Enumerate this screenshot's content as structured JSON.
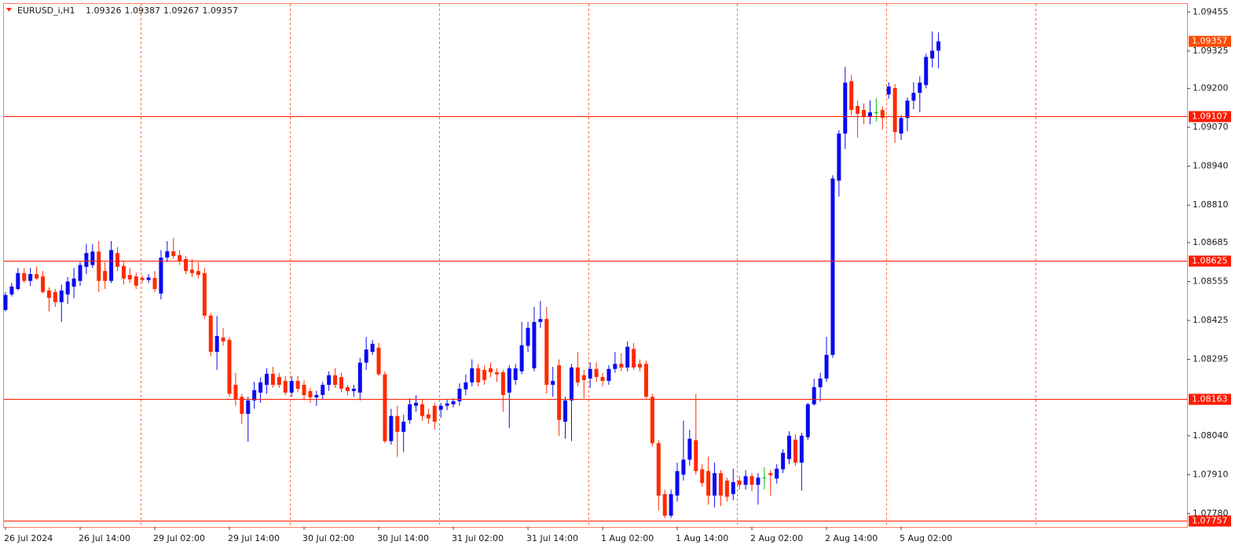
{
  "chart_data": {
    "type": "candlestick",
    "symbol": "EURUSD_i,H1",
    "header_ohlc": [
      1.09326,
      1.09387,
      1.09267,
      1.09357
    ],
    "up_color": "#0a0af0",
    "down_color": "#ff2a00",
    "doji_color": "#00c000",
    "grid": true,
    "ylim": [
      1.07738,
      1.09482
    ],
    "yticks": [
      {
        "value": 1.09455,
        "label": "1.09455"
      },
      {
        "value": 1.09325,
        "label": "1.09325"
      },
      {
        "value": 1.092,
        "label": "1.09200"
      },
      {
        "value": 1.0907,
        "label": "1.09070"
      },
      {
        "value": 1.0894,
        "label": "1.08940"
      },
      {
        "value": 1.0881,
        "label": "1.08810"
      },
      {
        "value": 1.08685,
        "label": "1.08685"
      },
      {
        "value": 1.08555,
        "label": "1.08555"
      },
      {
        "value": 1.08425,
        "label": "1.08425"
      },
      {
        "value": 1.08295,
        "label": "1.08295"
      },
      {
        "value": 1.0804,
        "label": "1.08040"
      },
      {
        "value": 1.0791,
        "label": "1.07910"
      },
      {
        "value": 1.0778,
        "label": "1.07780"
      }
    ],
    "levels": [
      1.09107,
      1.08625,
      1.08163,
      1.07757
    ],
    "level_color": "#ff1a00",
    "last_price": 1.09357,
    "last_price_color": "#ff4a00",
    "categories": [
      "26 Jul 2024",
      null,
      null,
      null,
      null,
      null,
      null,
      null,
      null,
      null,
      null,
      null,
      "26 Jul 14:00",
      null,
      null,
      null,
      null,
      null,
      null,
      null,
      null,
      null,
      null,
      null,
      "29 Jul 02:00",
      null,
      null,
      null,
      null,
      null,
      null,
      null,
      null,
      null,
      null,
      null,
      "29 Jul 14:00",
      null,
      null,
      null,
      null,
      null,
      null,
      null,
      null,
      null,
      null,
      null,
      "30 Jul 02:00",
      null,
      null,
      null,
      null,
      null,
      null,
      null,
      null,
      null,
      null,
      null,
      "30 Jul 14:00",
      null,
      null,
      null,
      null,
      null,
      null,
      null,
      null,
      null,
      null,
      null,
      "31 Jul 02:00",
      null,
      null,
      null,
      null,
      null,
      null,
      null,
      null,
      null,
      null,
      null,
      "31 Jul 14:00",
      null,
      null,
      null,
      null,
      null,
      null,
      null,
      null,
      null,
      null,
      null,
      "1 Aug 02:00",
      null,
      null,
      null,
      null,
      null,
      null,
      null,
      null,
      null,
      null,
      null,
      "1 Aug 14:00",
      null,
      null,
      null,
      null,
      null,
      null,
      null,
      null,
      null,
      null,
      null,
      "2 Aug 02:00",
      null,
      null,
      null,
      null,
      null,
      null,
      null,
      null,
      null,
      null,
      null,
      "2 Aug 14:00",
      null,
      null,
      null,
      null,
      null,
      null,
      null,
      null,
      null,
      null,
      null,
      "5 Aug 02:00",
      null,
      null,
      null,
      null,
      null,
      null
    ],
    "ohlc": [
      [
        1.0846,
        1.0852,
        1.08455,
        1.0851
      ],
      [
        1.08512,
        1.0855,
        1.08505,
        1.08538
      ],
      [
        1.0853,
        1.086,
        1.08525,
        1.08583
      ],
      [
        1.08583,
        1.086,
        1.0855,
        1.08557
      ],
      [
        1.08557,
        1.086,
        1.0854,
        1.0858
      ],
      [
        1.0858,
        1.08605,
        1.0856,
        1.08565
      ],
      [
        1.08572,
        1.0859,
        1.08515,
        1.0852
      ],
      [
        1.08525,
        1.08535,
        1.08455,
        1.085
      ],
      [
        1.0852,
        1.0853,
        1.0847,
        1.08486
      ],
      [
        1.08486,
        1.08545,
        1.0842,
        1.08525
      ],
      [
        1.08512,
        1.0857,
        1.0848,
        1.08555
      ],
      [
        1.08538,
        1.086,
        1.085,
        1.08565
      ],
      [
        1.08557,
        1.0862,
        1.0854,
        1.0861
      ],
      [
        1.08604,
        1.0868,
        1.0858,
        1.0865
      ],
      [
        1.0861,
        1.0868,
        1.086,
        1.08655
      ],
      [
        1.08655,
        1.0869,
        1.0852,
        1.08557
      ],
      [
        1.0859,
        1.0862,
        1.0853,
        1.08557
      ],
      [
        1.08557,
        1.0869,
        1.0855,
        1.0866
      ],
      [
        1.0865,
        1.0867,
        1.0859,
        1.08604
      ],
      [
        1.08607,
        1.08625,
        1.08545,
        1.08565
      ],
      [
        1.08577,
        1.086,
        1.0855,
        1.08562
      ],
      [
        1.08572,
        1.08585,
        1.0853,
        1.08541
      ],
      [
        1.08567,
        1.08575,
        1.0855,
        1.0856
      ],
      [
        1.0856,
        1.0858,
        1.0855,
        1.08568
      ],
      [
        1.08567,
        1.0859,
        1.0852,
        1.0853
      ],
      [
        1.08515,
        1.0866,
        1.08495,
        1.08635
      ],
      [
        1.08635,
        1.0869,
        1.0862,
        1.08656
      ],
      [
        1.08656,
        1.087,
        1.0863,
        1.0864
      ],
      [
        1.08643,
        1.0866,
        1.0861,
        1.08622
      ],
      [
        1.0863,
        1.0864,
        1.0858,
        1.0859
      ],
      [
        1.08595,
        1.0863,
        1.0857,
        1.08583
      ],
      [
        1.0859,
        1.0862,
        1.08565,
        1.08577
      ],
      [
        1.08583,
        1.086,
        1.0843,
        1.08441
      ],
      [
        1.08441,
        1.0845,
        1.08305,
        1.0832
      ],
      [
        1.0832,
        1.0844,
        1.0826,
        1.08373
      ],
      [
        1.08368,
        1.084,
        1.0834,
        1.08355
      ],
      [
        1.0836,
        1.0837,
        1.0817,
        1.0818
      ],
      [
        1.0821,
        1.0825,
        1.0814,
        1.08163
      ],
      [
        1.0817,
        1.0818,
        1.0808,
        1.08113
      ],
      [
        1.08113,
        1.0817,
        1.0802,
        1.08158
      ],
      [
        1.08158,
        1.0822,
        1.0813,
        1.08192
      ],
      [
        1.08184,
        1.08235,
        1.0815,
        1.08218
      ],
      [
        1.0821,
        1.08265,
        1.0818,
        1.08247
      ],
      [
        1.08247,
        1.0827,
        1.082,
        1.0821
      ],
      [
        1.08236,
        1.0825,
        1.082,
        1.0821
      ],
      [
        1.08223,
        1.0824,
        1.08175,
        1.08184
      ],
      [
        1.08184,
        1.0824,
        1.0817,
        1.08223
      ],
      [
        1.08223,
        1.0824,
        1.08185,
        1.08197
      ],
      [
        1.0821,
        1.08225,
        1.0816,
        1.08176
      ],
      [
        1.08189,
        1.082,
        1.0815,
        1.08168
      ],
      [
        1.08168,
        1.0819,
        1.0814,
        1.08176
      ],
      [
        1.08176,
        1.0822,
        1.0816,
        1.0821
      ],
      [
        1.0821,
        1.08255,
        1.0819,
        1.08242
      ],
      [
        1.08242,
        1.08265,
        1.082,
        1.0821
      ],
      [
        1.08236,
        1.0825,
        1.08185,
        1.08197
      ],
      [
        1.08202,
        1.0821,
        1.08175,
        1.08189
      ],
      [
        1.08189,
        1.0821,
        1.0817,
        1.08197
      ],
      [
        1.08184,
        1.083,
        1.08158,
        1.08284
      ],
      [
        1.08284,
        1.0837,
        1.0826,
        1.08328
      ],
      [
        1.0832,
        1.0836,
        1.0831,
        1.08347
      ],
      [
        1.08334,
        1.0835,
        1.0824,
        1.08245
      ],
      [
        1.08245,
        1.08255,
        1.08015,
        1.08022
      ],
      [
        1.08022,
        1.0813,
        1.0801,
        1.08106
      ],
      [
        1.08106,
        1.0814,
        1.0797,
        1.08053
      ],
      [
        1.08053,
        1.0811,
        1.07985,
        1.08087
      ],
      [
        1.08092,
        1.08165,
        1.0808,
        1.08145
      ],
      [
        1.0814,
        1.08175,
        1.0812,
        1.0815
      ],
      [
        1.08145,
        1.0816,
        1.0809,
        1.08106
      ],
      [
        1.08111,
        1.0813,
        1.0808,
        1.08098
      ],
      [
        1.0814,
        1.0815,
        1.0806,
        1.08087
      ],
      [
        1.08127,
        1.0815,
        1.081,
        1.0814
      ],
      [
        1.0814,
        1.0816,
        1.08125,
        1.08148
      ],
      [
        1.08145,
        1.08165,
        1.08135,
        1.08155
      ],
      [
        1.08155,
        1.08215,
        1.0814,
        1.08197
      ],
      [
        1.08195,
        1.08245,
        1.08175,
        1.08218
      ],
      [
        1.08218,
        1.08295,
        1.08205,
        1.08265
      ],
      [
        1.08265,
        1.0828,
        1.08205,
        1.08218
      ],
      [
        1.0826,
        1.08275,
        1.0821,
        1.08226
      ],
      [
        1.08265,
        1.08285,
        1.08235,
        1.08252
      ],
      [
        1.08252,
        1.08265,
        1.0822,
        1.08245
      ],
      [
        1.08252,
        1.0826,
        1.0812,
        1.08176
      ],
      [
        1.08184,
        1.08275,
        1.08065,
        1.08265
      ],
      [
        1.08226,
        1.0828,
        1.0821,
        1.08265
      ],
      [
        1.08255,
        1.0842,
        1.08245,
        1.08342
      ],
      [
        1.0834,
        1.0842,
        1.0832,
        1.084
      ],
      [
        1.08265,
        1.0847,
        1.08255,
        1.0842
      ],
      [
        1.0842,
        1.0849,
        1.084,
        1.0843
      ],
      [
        1.0843,
        1.0847,
        1.0818,
        1.0821
      ],
      [
        1.0821,
        1.0827,
        1.0817,
        1.08223
      ],
      [
        1.08275,
        1.08295,
        1.0804,
        1.08093
      ],
      [
        1.08087,
        1.0817,
        1.0803,
        1.08158
      ],
      [
        1.08158,
        1.0828,
        1.08022,
        1.08268
      ],
      [
        1.08268,
        1.0832,
        1.08205,
        1.08218
      ],
      [
        1.08242,
        1.0826,
        1.08165,
        1.08226
      ],
      [
        1.08231,
        1.08285,
        1.082,
        1.08263
      ],
      [
        1.08263,
        1.08285,
        1.0822,
        1.08236
      ],
      [
        1.08236,
        1.0825,
        1.08205,
        1.08223
      ],
      [
        1.08223,
        1.08275,
        1.0821,
        1.08263
      ],
      [
        1.08263,
        1.0832,
        1.0825,
        1.0828
      ],
      [
        1.0828,
        1.08315,
        1.08255,
        1.08268
      ],
      [
        1.08268,
        1.08355,
        1.08255,
        1.08337
      ],
      [
        1.0833,
        1.0835,
        1.0826,
        1.08268
      ],
      [
        1.0828,
        1.08295,
        1.08255,
        1.08268
      ],
      [
        1.0828,
        1.0829,
        1.08165,
        1.0817
      ],
      [
        1.0817,
        1.0818,
        1.08005,
        1.08015
      ],
      [
        1.08015,
        1.08025,
        1.0779,
        1.0784
      ],
      [
        1.07845,
        1.0786,
        1.07765,
        1.07773
      ],
      [
        1.07773,
        1.0786,
        1.07765,
        1.07845
      ],
      [
        1.0784,
        1.0795,
        1.0782,
        1.07922
      ],
      [
        1.0791,
        1.0809,
        1.0789,
        1.0796
      ],
      [
        1.0796,
        1.0806,
        1.0794,
        1.0803
      ],
      [
        1.08025,
        1.0818,
        1.0791,
        1.07922
      ],
      [
        1.07928,
        1.07945,
        1.0787,
        1.07882
      ],
      [
        1.07922,
        1.0797,
        1.0781,
        1.0784
      ],
      [
        1.0784,
        1.0795,
        1.078,
        1.07915
      ],
      [
        1.07915,
        1.07925,
        1.07805,
        1.0784
      ],
      [
        1.0789,
        1.079,
        1.0782,
        1.07836
      ],
      [
        1.07845,
        1.0793,
        1.07825,
        1.07885
      ],
      [
        1.0789,
        1.07905,
        1.0786,
        1.07876
      ],
      [
        1.07876,
        1.07925,
        1.0786,
        1.07905
      ],
      [
        1.07905,
        1.07915,
        1.07855,
        1.07876
      ],
      [
        1.07876,
        1.07915,
        1.0781,
        1.079
      ],
      [
        1.079,
        1.07935,
        1.0786,
        1.079
      ],
      [
        1.07915,
        1.07925,
        1.0784,
        1.07908
      ],
      [
        1.07897,
        1.07945,
        1.0788,
        1.0793
      ],
      [
        1.07928,
        1.07995,
        1.07915,
        1.07983
      ],
      [
        1.07962,
        1.08055,
        1.07945,
        1.0804
      ],
      [
        1.08027,
        1.08045,
        1.0794,
        1.0795
      ],
      [
        1.0795,
        1.0805,
        1.07857,
        1.0804
      ],
      [
        1.08035,
        1.0815,
        1.08025,
        1.08145
      ],
      [
        1.08145,
        1.0823,
        1.0814,
        1.08202
      ],
      [
        1.08202,
        1.0825,
        1.08155,
        1.08231
      ],
      [
        1.08231,
        1.0837,
        1.0822,
        1.0831
      ],
      [
        1.0831,
        1.0891,
        1.083,
        1.08899
      ],
      [
        1.08892,
        1.0906,
        1.08839,
        1.09049
      ],
      [
        1.09049,
        1.09272,
        1.08997,
        1.09219
      ],
      [
        1.09224,
        1.09245,
        1.0911,
        1.09128
      ],
      [
        1.09141,
        1.0916,
        1.09036,
        1.09115
      ],
      [
        1.09128,
        1.0915,
        1.0908,
        1.09107
      ],
      [
        1.09107,
        1.0916,
        1.0908,
        1.0912
      ],
      [
        1.0912,
        1.09167,
        1.09089,
        1.0912
      ],
      [
        1.09128,
        1.0914,
        1.09062,
        1.09102
      ],
      [
        1.0918,
        1.0922,
        1.09165,
        1.09206
      ],
      [
        1.09201,
        1.09215,
        1.09018,
        1.09054
      ],
      [
        1.09049,
        1.0911,
        1.09028,
        1.09101
      ],
      [
        1.09101,
        1.0917,
        1.09057,
        1.09159
      ],
      [
        1.09159,
        1.0922,
        1.0913,
        1.09185
      ],
      [
        1.09185,
        1.0924,
        1.0912,
        1.09219
      ],
      [
        1.09211,
        1.09316,
        1.092,
        1.09305
      ],
      [
        1.093,
        1.0939,
        1.0927,
        1.09326
      ],
      [
        1.09326,
        1.09387,
        1.09267,
        1.09357
      ]
    ]
  }
}
